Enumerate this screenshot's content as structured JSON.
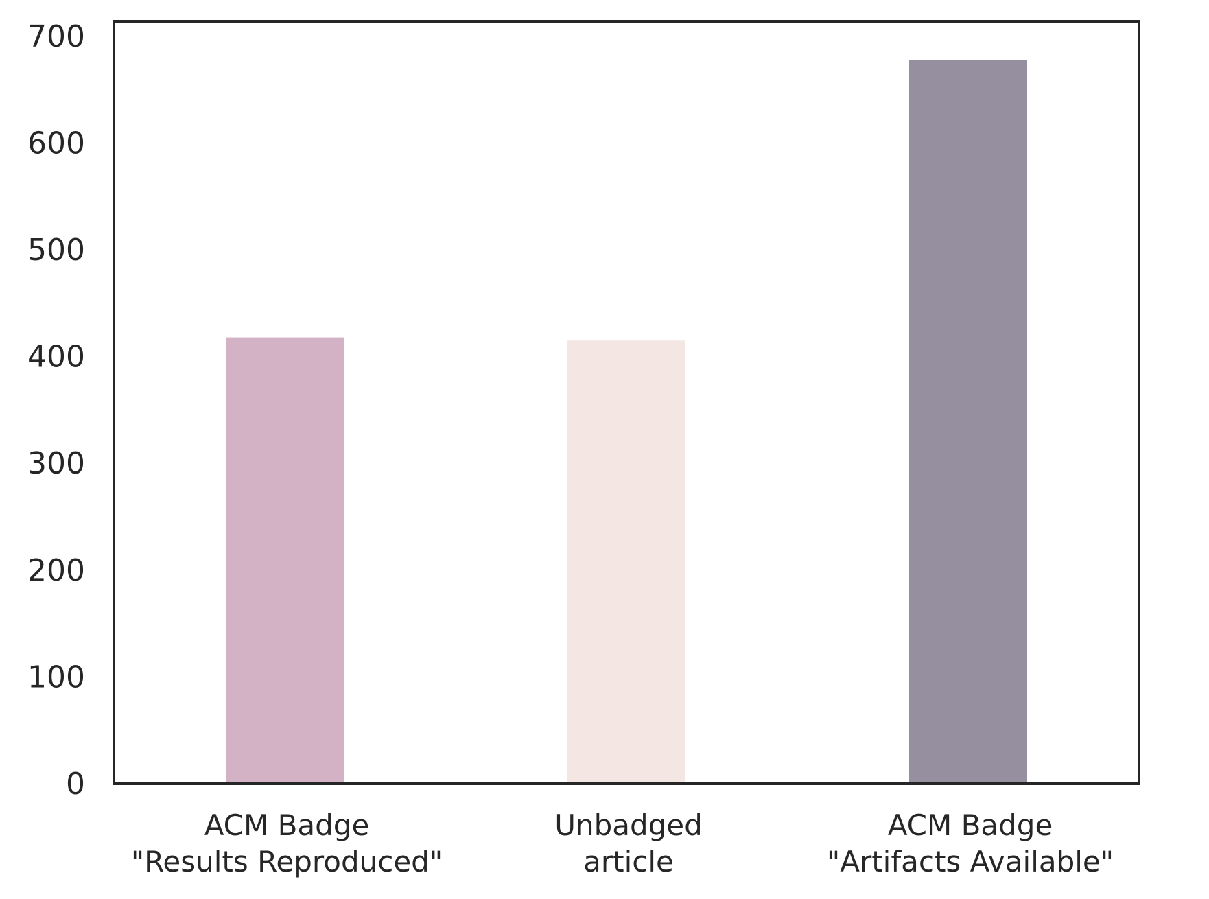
{
  "chart_data": {
    "type": "bar",
    "categories": [
      [
        "ACM Badge",
        "\"Results Reproduced\""
      ],
      [
        "Unbadged",
        "article"
      ],
      [
        "ACM Badge",
        "\"Artifacts Available\""
      ]
    ],
    "values": [
      418,
      415,
      678
    ],
    "colors": [
      "#d4b2c5",
      "#f4e6e3",
      "#968fa0"
    ],
    "title": "",
    "xlabel": "",
    "ylabel": "",
    "ylim": [
      0,
      714
    ],
    "yticks": [
      0,
      100,
      200,
      300,
      400,
      500,
      600,
      700
    ],
    "grid": false,
    "legend": null
  }
}
